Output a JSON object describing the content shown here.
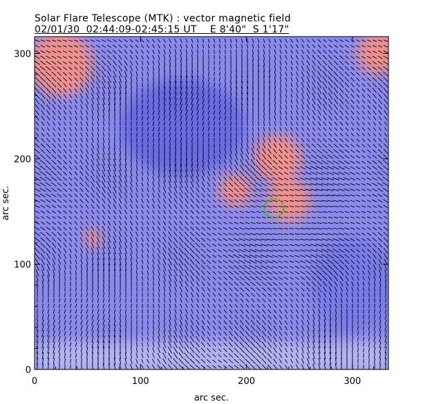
{
  "title": "Solar Flare Telescope (MTK) : vector magnetic field",
  "subtitle": "02/01/30  02:44:09-02:45:15 UT    E 8'40\"  S 1'17\"",
  "chart_data": {
    "type": "heatmap",
    "title": "Solar Flare Telescope (MTK) : vector magnetic field",
    "xlabel": "arc sec.",
    "ylabel": "arc sec.",
    "xlim": [
      0,
      334
    ],
    "ylim": [
      0,
      316
    ],
    "xticks": [
      "0",
      "100",
      "200",
      "300"
    ],
    "yticks": [
      "0",
      "100",
      "200",
      "300"
    ],
    "colors": {
      "negative": "#8888ee",
      "positive": "#f09090",
      "arrows": "#000000",
      "marker": "#00cc00"
    },
    "positive_regions": [
      {
        "x": 25,
        "y": 290,
        "r": 30
      },
      {
        "x": 325,
        "y": 300,
        "r": 20
      },
      {
        "x": 190,
        "y": 170,
        "r": 15
      },
      {
        "x": 240,
        "y": 160,
        "r": 20
      },
      {
        "x": 230,
        "y": 200,
        "r": 22
      },
      {
        "x": 55,
        "y": 125,
        "r": 8
      }
    ],
    "marker_circle": {
      "x": 226,
      "y": 153,
      "r": 9
    }
  }
}
